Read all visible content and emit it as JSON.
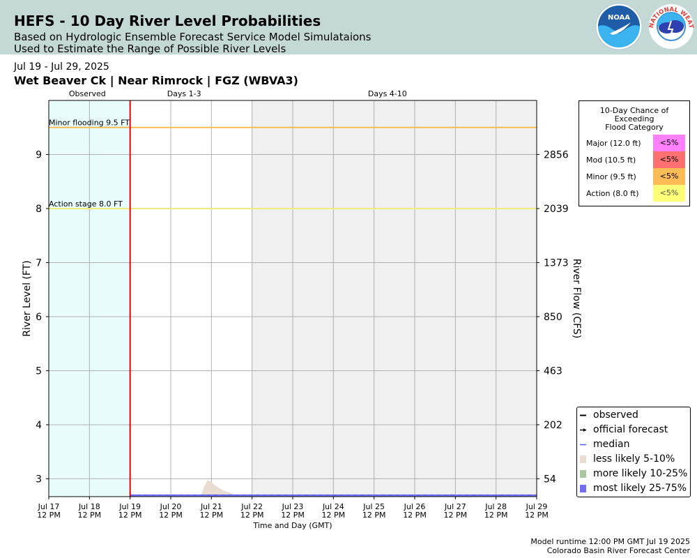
{
  "header": {
    "title": "HEFS - 10 Day River Level Probabilities",
    "subtitle1": "Based on Hydrologic Ensemble Forecast Service Model Simulataions",
    "subtitle2": "Used to Estimate the Range of Possible River Levels",
    "noaa_logo_text": "NOAA",
    "nws_logo_text": "NATIONAL WEATHER SERVICE"
  },
  "date_range": "Jul 19 - Jul 29, 2025",
  "station": "Wet Beaver Ck | Near Rimrock | FGZ (WBVA3)",
  "flood_table": {
    "title_lines": [
      "10-Day Chance of",
      "Exceeding",
      "Flood Category"
    ],
    "rows": [
      {
        "label": "Major (12.0 ft)",
        "value": "<5%",
        "color": "#ff80ff"
      },
      {
        "label": "Mod (10.5 ft)",
        "value": "<5%",
        "color": "#ff7070"
      },
      {
        "label": "Minor (9.5 ft)",
        "value": "<5%",
        "color": "#ffbb55"
      },
      {
        "label": "Action (8.0 ft)",
        "value": "<5%",
        "color": "#ffff77"
      }
    ]
  },
  "legend": [
    {
      "label": "observed",
      "kind": "line",
      "color": "#000000"
    },
    {
      "label": "official forecast",
      "kind": "arrow",
      "color": "#000000"
    },
    {
      "label": "median",
      "kind": "line",
      "color": "#5555ff"
    },
    {
      "label": "less likely 5-10%",
      "kind": "patch",
      "color": "#e8ddd0"
    },
    {
      "label": "more likely 10-25%",
      "kind": "patch",
      "color": "#a9c8a0"
    },
    {
      "label": "most likely 25-75%",
      "kind": "patch",
      "color": "#7070ee"
    }
  ],
  "footer": {
    "line1": "Model runtime 12:00 PM GMT Jul 19 2025",
    "line2": "Colorado Basin River Forecast Center"
  },
  "chart_data": {
    "type": "area",
    "xlabel": "Time and Day (GMT)",
    "ylabel": "River Level (FT)",
    "ylabel_right": "River Flow (CFS)",
    "ylim": [
      2.67,
      10.0
    ],
    "xlim": [
      "Jul 17 12 PM",
      "Jul 29 12 PM"
    ],
    "x_ticks": [
      "Jul 17",
      "Jul 18",
      "Jul 19",
      "Jul 20",
      "Jul 21",
      "Jul 22",
      "Jul 23",
      "Jul 24",
      "Jul 25",
      "Jul 26",
      "Jul 27",
      "Jul 28",
      "Jul 29"
    ],
    "x_tick_sublabel": "12 PM",
    "y_ticks": [
      3,
      4,
      5,
      6,
      7,
      8,
      9
    ],
    "y_right_ticks": [
      {
        "stage": 3,
        "flow": "54"
      },
      {
        "stage": 4,
        "flow": "202"
      },
      {
        "stage": 5,
        "flow": "463"
      },
      {
        "stage": 6,
        "flow": "850"
      },
      {
        "stage": 7,
        "flow": "1373"
      },
      {
        "stage": 8,
        "flow": "2039"
      },
      {
        "stage": 9,
        "flow": "2856"
      }
    ],
    "periods": [
      {
        "label": "Observed",
        "start_day": 0,
        "end_day": 2,
        "color": "#e8fcfc"
      },
      {
        "label": "Days 1-3",
        "start_day": 2,
        "end_day": 5,
        "color": "#ffffff"
      },
      {
        "label": "Days 4-10",
        "start_day": 5,
        "end_day": 12,
        "color": "#f0f0f0"
      }
    ],
    "forecast_start_day": 2,
    "thresholds": [
      {
        "label": "Minor flooding 9.5 FT",
        "value": 9.5,
        "color": "#ffbb55"
      },
      {
        "label": "Action stage 8.0 FT",
        "value": 8.0,
        "color": "#eeee77"
      }
    ],
    "series": [
      {
        "name": "median",
        "x_days": [
          2,
          12
        ],
        "values": [
          2.69,
          2.69
        ]
      },
      {
        "name": "less likely 5-10%",
        "x_days": [
          3.75,
          3.82,
          3.9,
          3.98,
          4.1,
          4.3,
          4.5,
          4.6,
          4.7,
          5.0,
          9.8,
          9.9,
          10.0
        ],
        "values": [
          2.69,
          2.85,
          2.97,
          2.95,
          2.87,
          2.78,
          2.73,
          2.7,
          2.69,
          2.69,
          2.69,
          2.73,
          2.69
        ]
      },
      {
        "name": "most likely 25-75%",
        "x_days": [
          2,
          12
        ],
        "values": [
          2.69,
          2.69
        ]
      }
    ]
  }
}
